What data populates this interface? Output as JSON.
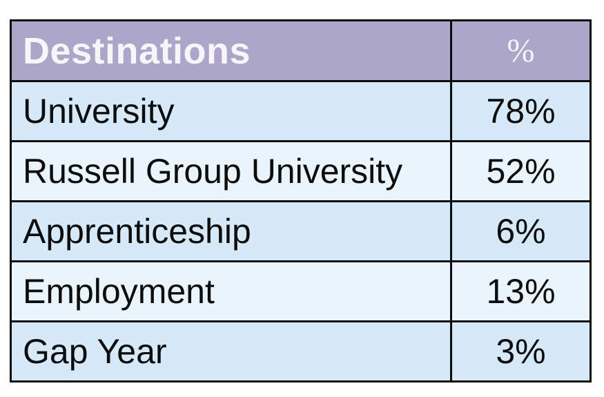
{
  "table": {
    "header": {
      "col1": "Destinations",
      "col2": "%"
    },
    "rows": [
      {
        "label": "University",
        "value": "78%"
      },
      {
        "label": "Russell Group University",
        "value": "52%"
      },
      {
        "label": "Apprenticeship",
        "value": "6%"
      },
      {
        "label": "Employment",
        "value": "13%"
      },
      {
        "label": "Gap Year",
        "value": "3%"
      }
    ]
  },
  "colors": {
    "header_bg": "#aca6c9",
    "header_text": "#f7f5fa",
    "row_odd_bg": "#d6e9f8",
    "row_even_bg": "#eaf4fc",
    "border": "#0b0b0b",
    "body_text": "#0d0d0d",
    "page_bg": "#ffffff"
  },
  "chart_data": {
    "type": "table",
    "title": "Destinations",
    "columns": [
      "Destinations",
      "%"
    ],
    "categories": [
      "University",
      "Russell Group University",
      "Apprenticeship",
      "Employment",
      "Gap Year"
    ],
    "values": [
      78,
      52,
      6,
      13,
      3
    ],
    "value_labels": [
      "78%",
      "52%",
      "6%",
      "13%",
      "3%"
    ],
    "layout": {
      "header_style": "purple banner, white text",
      "row_style": "alternating light blue rows, black grid borders",
      "value_alignment": "center",
      "label_alignment": "left"
    }
  }
}
